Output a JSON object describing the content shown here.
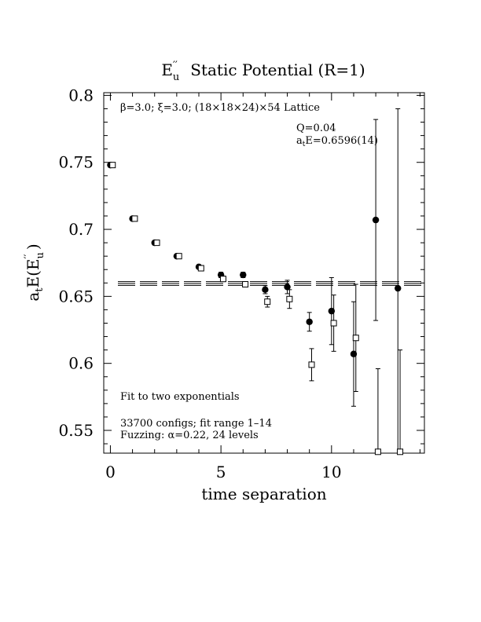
{
  "chart_data": {
    "type": "scatter",
    "title_main": "E",
    "title_sub": "u",
    "title_sup": "′′",
    "title_rest": "Static Potential (R=1)",
    "xlabel": "time separation",
    "ylabel_prefix": "a",
    "ylabel_prefix_sub": "t",
    "ylabel_main": "E(E",
    "ylabel_sup": "′′",
    "ylabel_sub": "u",
    "ylabel_close": ")",
    "xlim": [
      -0.3,
      14.2
    ],
    "ylim": [
      0.533,
      0.802
    ],
    "x_ticks_major": [
      0,
      5,
      10
    ],
    "x_tick_labels": [
      "0",
      "5",
      "10"
    ],
    "y_ticks_major": [
      0.55,
      0.6,
      0.65,
      0.7,
      0.75,
      0.8
    ],
    "y_tick_labels": [
      "0.55",
      "0.6",
      "0.65",
      "0.7",
      "0.75",
      "0.8"
    ],
    "annotations": {
      "lattice": "β=3.0; ξ=3.0; (18×18×24)×54 Lattice",
      "q": "Q=0.04",
      "ate_prefix": "a",
      "ate_sub": "t",
      "ate_value": "E=0.6596(14)",
      "fit": "Fit to two exponentials",
      "configs": "33700 configs; fit range 1–14",
      "fuzzing": "Fuzzing: α=0.22, 24 levels"
    },
    "fit_band": {
      "x_range": [
        -0.3,
        14.2
      ],
      "center": 0.6596,
      "error": 0.0014
    },
    "series": [
      {
        "marker": "filled-circle",
        "points": [
          {
            "x": 0,
            "y": 0.748,
            "err": 0.001
          },
          {
            "x": 1,
            "y": 0.708,
            "err": 0.001
          },
          {
            "x": 2,
            "y": 0.69,
            "err": 0.001
          },
          {
            "x": 3,
            "y": 0.68,
            "err": 0.001
          },
          {
            "x": 4,
            "y": 0.672,
            "err": 0.0015
          },
          {
            "x": 5,
            "y": 0.666,
            "err": 0.002
          },
          {
            "x": 6,
            "y": 0.666,
            "err": 0.002
          },
          {
            "x": 7,
            "y": 0.655,
            "err": 0.003
          },
          {
            "x": 8,
            "y": 0.657,
            "err": 0.005
          },
          {
            "x": 9,
            "y": 0.631,
            "err": 0.007
          },
          {
            "x": 10,
            "y": 0.639,
            "err": 0.025
          },
          {
            "x": 11,
            "y": 0.607,
            "err": 0.039
          },
          {
            "x": 12,
            "y": 0.707,
            "err": 0.075
          },
          {
            "x": 13,
            "y": 0.656,
            "err": 0.134
          }
        ]
      },
      {
        "marker": "open-square",
        "points": [
          {
            "x": 0.1,
            "y": 0.748,
            "err": 0.001
          },
          {
            "x": 1.1,
            "y": 0.708,
            "err": 0.001
          },
          {
            "x": 2.1,
            "y": 0.69,
            "err": 0.001
          },
          {
            "x": 3.1,
            "y": 0.68,
            "err": 0.001
          },
          {
            "x": 4.1,
            "y": 0.671,
            "err": 0.0015
          },
          {
            "x": 5.1,
            "y": 0.663,
            "err": 0.002
          },
          {
            "x": 6.1,
            "y": 0.659,
            "err": 0.002
          },
          {
            "x": 7.1,
            "y": 0.646,
            "err": 0.004
          },
          {
            "x": 8.1,
            "y": 0.648,
            "err": 0.007
          },
          {
            "x": 9.1,
            "y": 0.599,
            "err": 0.012
          },
          {
            "x": 10.1,
            "y": 0.63,
            "err": 0.021
          },
          {
            "x": 11.1,
            "y": 0.619,
            "err": 0.04
          },
          {
            "x": 12.1,
            "y": 0.534,
            "err": 0.062
          },
          {
            "x": 13.1,
            "y": 0.534,
            "err": 0.076
          }
        ]
      }
    ]
  }
}
